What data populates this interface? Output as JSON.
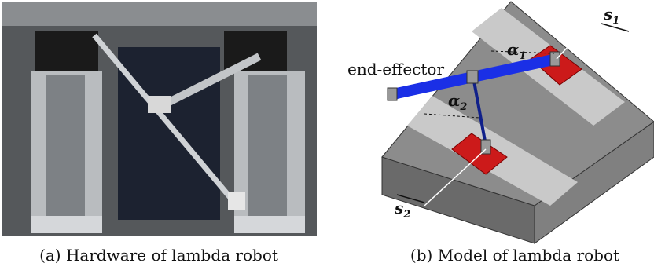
{
  "figure": {
    "panel_a": {
      "caption": "(a) Hardware of lambda robot"
    },
    "panel_b": {
      "caption": "(b) Model of lambda robot",
      "end_effector": "end-effector",
      "s1": {
        "symbol": "s",
        "subscript": "1"
      },
      "s2": {
        "symbol": "s",
        "subscript": "2"
      },
      "alpha1": {
        "symbol": "α",
        "subscript": "1"
      },
      "alpha2": {
        "symbol": "α",
        "subscript": "2"
      }
    }
  }
}
